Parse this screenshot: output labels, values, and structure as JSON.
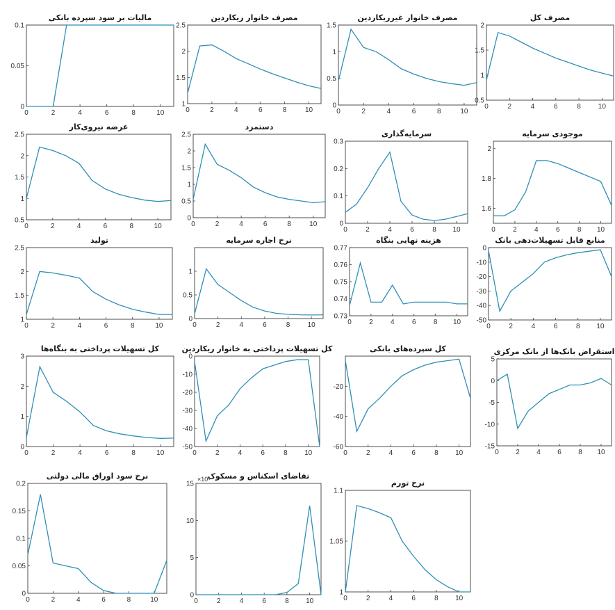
{
  "chart_data": [
    {
      "type": "line",
      "title": "مالیات بر سود سپرده بانکی",
      "x": [
        0,
        1,
        2,
        3,
        4,
        5,
        6,
        7,
        8,
        9,
        10,
        11
      ],
      "values": [
        0,
        0,
        0,
        0.1,
        0.1,
        0.1,
        0.1,
        0.1,
        0.1,
        0.1,
        0.1,
        0.1
      ],
      "xlim": [
        0,
        11
      ],
      "ylim": [
        0,
        0.1
      ],
      "xticks": [
        "0",
        "2",
        "4",
        "6",
        "8",
        "10"
      ],
      "yticks": [
        "0",
        "0.05",
        "0.1"
      ]
    },
    {
      "type": "line",
      "title": "مصرف خانوار ریکاردین",
      "x": [
        0,
        1,
        2,
        3,
        4,
        5,
        6,
        7,
        8,
        9,
        10,
        11
      ],
      "values": [
        1.2,
        2.1,
        2.12,
        2.0,
        1.86,
        1.76,
        1.66,
        1.57,
        1.49,
        1.41,
        1.34,
        1.29
      ],
      "xlim": [
        0,
        11
      ],
      "ylim": [
        1,
        2.5
      ],
      "xticks": [
        "0",
        "2",
        "4",
        "6",
        "8",
        "10"
      ],
      "yticks": [
        "1",
        "1.5",
        "2",
        "2.5"
      ]
    },
    {
      "type": "line",
      "title": "مصرف خانوار غیرریکاردین",
      "x": [
        0,
        1,
        2,
        3,
        4,
        5,
        6,
        7,
        8,
        9,
        10,
        11
      ],
      "values": [
        0.45,
        1.42,
        1.08,
        1.0,
        0.85,
        0.68,
        0.58,
        0.5,
        0.44,
        0.4,
        0.37,
        0.42
      ],
      "xlim": [
        0,
        11
      ],
      "ylim": [
        0,
        1.5
      ],
      "xticks": [
        "0",
        "2",
        "4",
        "6",
        "8",
        "10"
      ],
      "yticks": [
        "0",
        "0.5",
        "1",
        "1.5"
      ]
    },
    {
      "type": "line",
      "title": "مصرف کل",
      "x": [
        0,
        1,
        2,
        3,
        4,
        5,
        6,
        7,
        8,
        9,
        10,
        11
      ],
      "values": [
        0.9,
        1.85,
        1.78,
        1.66,
        1.54,
        1.44,
        1.34,
        1.26,
        1.18,
        1.1,
        1.04,
        0.98
      ],
      "xlim": [
        0,
        11
      ],
      "ylim": [
        0.5,
        2
      ],
      "xticks": [
        "0",
        "2",
        "4",
        "6",
        "8",
        "10"
      ],
      "yticks": [
        "0.5",
        "1",
        "1.5",
        "2"
      ]
    },
    {
      "type": "line",
      "title": "عرضه نیروی‌کار",
      "x": [
        0,
        1,
        2,
        3,
        4,
        5,
        6,
        7,
        8,
        9,
        10,
        11
      ],
      "values": [
        1.0,
        2.2,
        2.12,
        2.0,
        1.82,
        1.42,
        1.22,
        1.1,
        1.02,
        0.96,
        0.93,
        0.95
      ],
      "xlim": [
        0,
        11
      ],
      "ylim": [
        0.5,
        2.5
      ],
      "xticks": [
        "0",
        "2",
        "4",
        "6",
        "8",
        "10"
      ],
      "yticks": [
        "0.5",
        "1",
        "1.5",
        "2",
        "2.5"
      ]
    },
    {
      "type": "line",
      "title": "دستمزد",
      "x": [
        0,
        1,
        2,
        3,
        4,
        5,
        6,
        7,
        8,
        9,
        10,
        11
      ],
      "values": [
        0.55,
        2.2,
        1.6,
        1.42,
        1.2,
        0.92,
        0.75,
        0.62,
        0.55,
        0.5,
        0.45,
        0.48
      ],
      "xlim": [
        0,
        11
      ],
      "ylim": [
        0,
        2.5
      ],
      "xticks": [
        "0",
        "2",
        "4",
        "6",
        "8",
        "10"
      ],
      "yticks": [
        "0",
        "0.5",
        "1",
        "1.5",
        "2",
        "2.5"
      ]
    },
    {
      "type": "line",
      "title": "سرمایه‌گذاری",
      "x": [
        0,
        1,
        2,
        3,
        4,
        5,
        6,
        7,
        8,
        9,
        10,
        11
      ],
      "values": [
        0.04,
        0.07,
        0.13,
        0.2,
        0.26,
        0.08,
        0.03,
        0.015,
        0.01,
        0.015,
        0.025,
        0.035
      ],
      "xlim": [
        0,
        11
      ],
      "ylim": [
        0,
        0.3
      ],
      "xticks": [
        "0",
        "2",
        "4",
        "6",
        "8",
        "10"
      ],
      "yticks": [
        "0",
        "0.1",
        "0.2",
        "0.3"
      ]
    },
    {
      "type": "line",
      "title": "موجودی سرمایه",
      "x": [
        0,
        1,
        2,
        3,
        4,
        5,
        6,
        7,
        8,
        9,
        10,
        11
      ],
      "values": [
        1.55,
        1.55,
        1.59,
        1.71,
        1.92,
        1.92,
        1.9,
        1.87,
        1.84,
        1.81,
        1.78,
        1.62
      ],
      "xlim": [
        0,
        11
      ],
      "ylim": [
        1.5,
        2.05
      ],
      "xticks": [
        "0",
        "2",
        "4",
        "6",
        "8",
        "10"
      ],
      "yticks": [
        "1.6",
        "1.8",
        "2"
      ]
    },
    {
      "type": "line",
      "title": "تولید",
      "x": [
        0,
        1,
        2,
        3,
        4,
        5,
        6,
        7,
        8,
        9,
        10,
        11
      ],
      "values": [
        1.1,
        2.0,
        1.97,
        1.92,
        1.86,
        1.58,
        1.42,
        1.3,
        1.21,
        1.15,
        1.1,
        1.1
      ],
      "xlim": [
        0,
        11
      ],
      "ylim": [
        1,
        2.5
      ],
      "xticks": [
        "0",
        "2",
        "4",
        "6",
        "8",
        "10"
      ],
      "yticks": [
        "1",
        "1.5",
        "2",
        "2.5"
      ]
    },
    {
      "type": "line",
      "title": "نرخ اجاره سرمایه",
      "x": [
        0,
        1,
        2,
        3,
        4,
        5,
        6,
        7,
        8,
        9,
        10,
        11
      ],
      "values": [
        0.1,
        1.05,
        0.72,
        0.55,
        0.38,
        0.24,
        0.16,
        0.11,
        0.09,
        0.08,
        0.075,
        0.08
      ],
      "xlim": [
        0,
        11
      ],
      "ylim": [
        0,
        1.5
      ],
      "xticks": [
        "0",
        "2",
        "4",
        "6",
        "8",
        "10"
      ],
      "yticks": [
        "0",
        "0.5",
        "1"
      ]
    },
    {
      "type": "line",
      "title": "هزینه نهایی بنگاه",
      "x": [
        0,
        1,
        2,
        3,
        4,
        5,
        6,
        7,
        8,
        9,
        10,
        11
      ],
      "values": [
        0.736,
        0.761,
        0.738,
        0.738,
        0.748,
        0.737,
        0.738,
        0.738,
        0.738,
        0.738,
        0.737,
        0.737
      ],
      "xlim": [
        0,
        11
      ],
      "ylim": [
        0.73,
        0.77
      ],
      "xticks": [
        "0",
        "2",
        "4",
        "6",
        "8",
        "10"
      ],
      "yticks": [
        "0.73",
        "0.74",
        "0.75",
        "0.76",
        "0.77"
      ]
    },
    {
      "type": "line",
      "title": "منابع قابل تسهیلات‌دهی بانک",
      "x": [
        0,
        1,
        2,
        3,
        4,
        5,
        6,
        7,
        8,
        9,
        10,
        11
      ],
      "values": [
        -2,
        -44,
        -30,
        -24,
        -18,
        -10,
        -7,
        -5,
        -3.5,
        -2.5,
        -1.5,
        -20
      ],
      "xlim": [
        0,
        11
      ],
      "ylim": [
        -50,
        0
      ],
      "xticks": [
        "0",
        "2",
        "4",
        "6",
        "8",
        "10"
      ],
      "yticks": [
        "-50",
        "-40",
        "-30",
        "-20",
        "-10",
        "0"
      ]
    },
    {
      "type": "line",
      "title": "کل تسهیلات پرداختی به بنگاه‌ها",
      "x": [
        0,
        1,
        2,
        3,
        4,
        5,
        6,
        7,
        8,
        9,
        10,
        11
      ],
      "values": [
        0.3,
        2.65,
        1.8,
        1.5,
        1.15,
        0.7,
        0.52,
        0.42,
        0.35,
        0.3,
        0.27,
        0.28
      ],
      "xlim": [
        0,
        11
      ],
      "ylim": [
        0,
        3
      ],
      "xticks": [
        "0",
        "2",
        "4",
        "6",
        "8",
        "10"
      ],
      "yticks": [
        "0",
        "1",
        "2",
        "3"
      ]
    },
    {
      "type": "line",
      "title": "کل تسهیلات پرداختی به خانوار ریکاردین",
      "x": [
        0,
        1,
        2,
        3,
        4,
        5,
        6,
        7,
        8,
        9,
        10,
        11
      ],
      "values": [
        -3,
        -47,
        -33,
        -27,
        -18,
        -12,
        -7,
        -5,
        -3,
        -2,
        -2,
        -50
      ],
      "xlim": [
        0,
        11
      ],
      "ylim": [
        -50,
        0
      ],
      "xticks": [
        "0",
        "2",
        "4",
        "6",
        "8",
        "10"
      ],
      "yticks": [
        "-50",
        "-40",
        "-30",
        "-20",
        "-10",
        "0"
      ]
    },
    {
      "type": "line",
      "title": "کل سپرده‌های بانکی",
      "x": [
        0,
        1,
        2,
        3,
        4,
        5,
        6,
        7,
        8,
        9,
        10,
        11
      ],
      "values": [
        -3,
        -50,
        -35,
        -28,
        -20,
        -13,
        -9,
        -6,
        -4,
        -3,
        -2,
        -28
      ],
      "xlim": [
        0,
        11
      ],
      "ylim": [
        -60,
        0
      ],
      "xticks": [
        "0",
        "2",
        "4",
        "6",
        "8",
        "10"
      ],
      "yticks": [
        "-60",
        "-40",
        "-20"
      ]
    },
    {
      "type": "line",
      "title": "استقراض بانک‌ها از بانک مرکزی",
      "x": [
        0,
        1,
        2,
        3,
        4,
        5,
        6,
        7,
        8,
        9,
        10,
        11
      ],
      "values": [
        0,
        1.5,
        -11,
        -7,
        -5,
        -3,
        -2,
        -1,
        -1,
        -0.5,
        0.5,
        -1
      ],
      "xlim": [
        0,
        11
      ],
      "ylim": [
        -15,
        5
      ],
      "xticks": [
        "0",
        "2",
        "4",
        "6",
        "8",
        "10"
      ],
      "yticks": [
        "-15",
        "-10",
        "-5",
        "0",
        "5"
      ]
    },
    {
      "type": "line",
      "title": "نرخ سود اوراق مالی دولتی",
      "x": [
        0,
        1,
        2,
        3,
        4,
        5,
        6,
        7,
        8,
        9,
        10,
        11
      ],
      "values": [
        0.07,
        0.18,
        0.055,
        0.05,
        0.045,
        0.02,
        0.005,
        0,
        0,
        0,
        0,
        0.06
      ],
      "xlim": [
        0,
        11
      ],
      "ylim": [
        0,
        0.2
      ],
      "xticks": [
        "0",
        "2",
        "4",
        "6",
        "8",
        "10"
      ],
      "yticks": [
        "0",
        "0.05",
        "0.1",
        "0.15",
        "0.2"
      ]
    },
    {
      "type": "line",
      "title": "تقاضای اسکناس و مسکوک",
      "x": [
        0,
        1,
        2,
        3,
        4,
        5,
        6,
        7,
        8,
        9,
        10,
        11
      ],
      "values": [
        0,
        0,
        0,
        0,
        0,
        0,
        0,
        0,
        0.3,
        1.5,
        12,
        0
      ],
      "xlim": [
        0,
        11
      ],
      "ylim": [
        0,
        15
      ],
      "xticks": [
        "0",
        "2",
        "4",
        "6",
        "8",
        "10"
      ],
      "yticks": [
        "0",
        "5",
        "10",
        "15"
      ],
      "exponent_label": "×10⁴"
    },
    {
      "type": "line",
      "title": "نرخ تورم",
      "x": [
        0,
        1,
        2,
        3,
        4,
        5,
        6,
        7,
        8,
        9,
        10,
        11
      ],
      "values": [
        1.0,
        1.085,
        1.082,
        1.078,
        1.073,
        1.05,
        1.035,
        1.022,
        1.012,
        1.005,
        1.0,
        1.0
      ],
      "xlim": [
        0,
        11
      ],
      "ylim": [
        1,
        1.1
      ],
      "xticks": [
        "0",
        "2",
        "4",
        "6",
        "8",
        "10"
      ],
      "yticks": [
        "1",
        "1.05",
        "1.1"
      ]
    }
  ],
  "colors": {
    "line": "#2e8fb5",
    "axes": "#3a3a3a",
    "background": "#ffffff"
  }
}
